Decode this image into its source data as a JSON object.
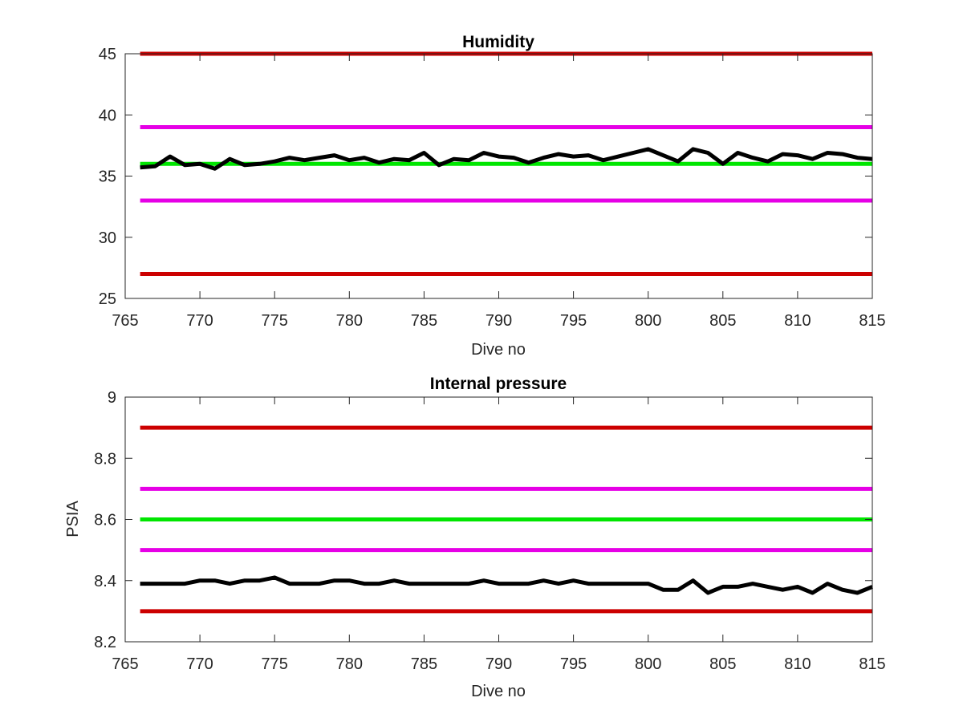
{
  "chart_data": [
    {
      "type": "line",
      "title": "Humidity",
      "xlabel": "Dive no",
      "ylabel": "",
      "xlim": [
        765,
        815
      ],
      "ylim": [
        25,
        45
      ],
      "xticks": [
        "765",
        "770",
        "775",
        "780",
        "785",
        "790",
        "795",
        "800",
        "805",
        "810",
        "815"
      ],
      "yticks": [
        "25",
        "30",
        "35",
        "40",
        "45"
      ],
      "x_start": 766,
      "x_end": 815,
      "thresholds": [
        {
          "value": 45,
          "color": "#cc0000"
        },
        {
          "value": 39,
          "color": "#e600e6"
        },
        {
          "value": 36,
          "color": "#00e600"
        },
        {
          "value": 33,
          "color": "#e600e6"
        },
        {
          "value": 27,
          "color": "#cc0000"
        }
      ],
      "series": [
        {
          "color": "#000000",
          "x": [
            766,
            767,
            768,
            769,
            770,
            771,
            772,
            773,
            774,
            775,
            776,
            777,
            778,
            779,
            780,
            781,
            782,
            783,
            784,
            785,
            786,
            787,
            788,
            789,
            790,
            791,
            792,
            793,
            794,
            795,
            796,
            797,
            798,
            799,
            800,
            801,
            802,
            803,
            804,
            805,
            806,
            807,
            808,
            809,
            810,
            811,
            812,
            813,
            814,
            815
          ],
          "values": [
            35.7,
            35.8,
            36.6,
            35.9,
            36.0,
            35.6,
            36.4,
            35.9,
            36.0,
            36.2,
            36.5,
            36.3,
            36.5,
            36.7,
            36.3,
            36.5,
            36.1,
            36.4,
            36.3,
            36.9,
            35.9,
            36.4,
            36.3,
            36.9,
            36.6,
            36.5,
            36.1,
            36.5,
            36.8,
            36.6,
            36.7,
            36.3,
            36.6,
            36.9,
            37.2,
            36.7,
            36.2,
            37.2,
            36.9,
            36.0,
            36.9,
            36.5,
            36.2,
            36.8,
            36.7,
            36.4,
            36.9,
            36.8,
            36.5,
            36.4
          ]
        }
      ],
      "grid": false
    },
    {
      "type": "line",
      "title": "Internal pressure",
      "xlabel": "Dive no",
      "ylabel": "PSIA",
      "xlim": [
        765,
        815
      ],
      "ylim": [
        8.2,
        9.0
      ],
      "xticks": [
        "765",
        "770",
        "775",
        "780",
        "785",
        "790",
        "795",
        "800",
        "805",
        "810",
        "815"
      ],
      "yticks": [
        "8.2",
        "8.4",
        "8.6",
        "8.8",
        "9"
      ],
      "x_start": 766,
      "x_end": 815,
      "thresholds": [
        {
          "value": 8.9,
          "color": "#cc0000"
        },
        {
          "value": 8.7,
          "color": "#e600e6"
        },
        {
          "value": 8.6,
          "color": "#00e600"
        },
        {
          "value": 8.5,
          "color": "#e600e6"
        },
        {
          "value": 8.3,
          "color": "#cc0000"
        }
      ],
      "series": [
        {
          "color": "#000000",
          "x": [
            766,
            767,
            768,
            769,
            770,
            771,
            772,
            773,
            774,
            775,
            776,
            777,
            778,
            779,
            780,
            781,
            782,
            783,
            784,
            785,
            786,
            787,
            788,
            789,
            790,
            791,
            792,
            793,
            794,
            795,
            796,
            797,
            798,
            799,
            800,
            801,
            802,
            803,
            804,
            805,
            806,
            807,
            808,
            809,
            810,
            811,
            812,
            813,
            814,
            815
          ],
          "values": [
            8.39,
            8.39,
            8.39,
            8.39,
            8.4,
            8.4,
            8.39,
            8.4,
            8.4,
            8.41,
            8.39,
            8.39,
            8.39,
            8.4,
            8.4,
            8.39,
            8.39,
            8.4,
            8.39,
            8.39,
            8.39,
            8.39,
            8.39,
            8.4,
            8.39,
            8.39,
            8.39,
            8.4,
            8.39,
            8.4,
            8.39,
            8.39,
            8.39,
            8.39,
            8.39,
            8.37,
            8.37,
            8.4,
            8.36,
            8.38,
            8.38,
            8.39,
            8.38,
            8.37,
            8.38,
            8.36,
            8.39,
            8.37,
            8.36,
            8.38
          ]
        }
      ],
      "grid": false
    }
  ]
}
